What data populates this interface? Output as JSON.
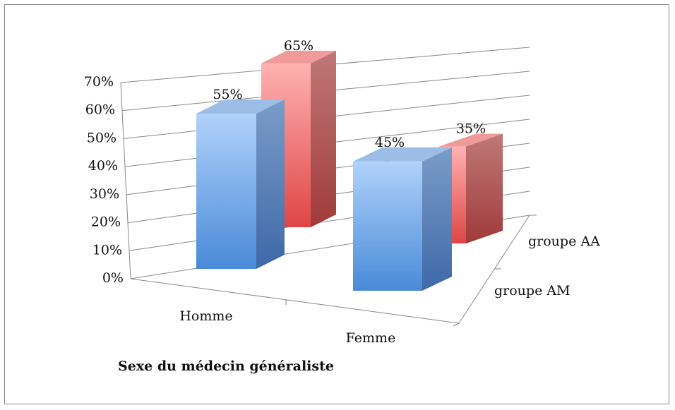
{
  "chart_data": {
    "type": "bar3d",
    "categories": [
      "Homme",
      "Femme"
    ],
    "series": [
      {
        "name": "groupe AM",
        "color": "#5b9bd5",
        "values": [
          55,
          45
        ],
        "value_labels": [
          "55%",
          "45%"
        ]
      },
      {
        "name": "groupe AA",
        "color": "#e05a5a",
        "values": [
          65,
          35
        ],
        "value_labels": [
          "65%",
          "35%"
        ]
      }
    ],
    "x_label": "Sexe du médecin généraliste",
    "ylim": [
      0,
      70
    ],
    "yticks": [
      {
        "value": 0,
        "label": "0%"
      },
      {
        "value": 10,
        "label": "10%"
      },
      {
        "value": 20,
        "label": "20%"
      },
      {
        "value": 30,
        "label": "30%"
      },
      {
        "value": 40,
        "label": "40%"
      },
      {
        "value": 50,
        "label": "50%"
      },
      {
        "value": 60,
        "label": "60%"
      },
      {
        "value": 70,
        "label": "70%"
      }
    ],
    "grid": true
  }
}
